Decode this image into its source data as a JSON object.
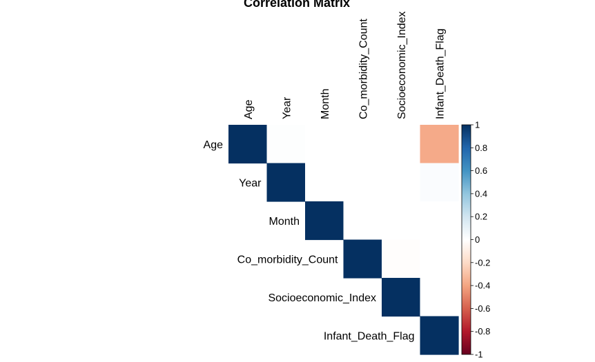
{
  "chart_data": {
    "type": "heatmap",
    "title": "Correlation Matrix",
    "layout": "upper-triangle",
    "variables": [
      "Age",
      "Year",
      "Month",
      "Co_morbidity_Count",
      "Socioeconomic_Index",
      "Infant_Death_Flag"
    ],
    "matrix": [
      [
        1.0,
        0.01,
        0.0,
        0.0,
        0.0,
        -0.38
      ],
      [
        0.01,
        1.0,
        0.0,
        0.0,
        0.0,
        0.02
      ],
      [
        0.0,
        0.0,
        1.0,
        0.0,
        0.0,
        0.0
      ],
      [
        0.0,
        0.0,
        0.0,
        1.0,
        -0.01,
        0.0
      ],
      [
        0.0,
        0.0,
        0.0,
        -0.01,
        1.0,
        0.0
      ],
      [
        -0.38,
        0.02,
        0.0,
        0.0,
        0.0,
        1.0
      ]
    ],
    "colorbar": {
      "range": [
        -1,
        1
      ],
      "ticks": [
        "1",
        "0.8",
        "0.6",
        "0.4",
        "0.2",
        "0",
        "-0.2",
        "-0.4",
        "-0.6",
        "-0.8",
        "-1"
      ],
      "colors": {
        "negative_end": "#67001F",
        "negative_mid": "#D6604D",
        "light_negative": "#FDDBC7",
        "zero": "#FFFFFF",
        "light_positive": "#D1E5F0",
        "positive_mid": "#4393C3",
        "positive_end": "#053061"
      }
    },
    "grid": false,
    "legend": "right"
  }
}
